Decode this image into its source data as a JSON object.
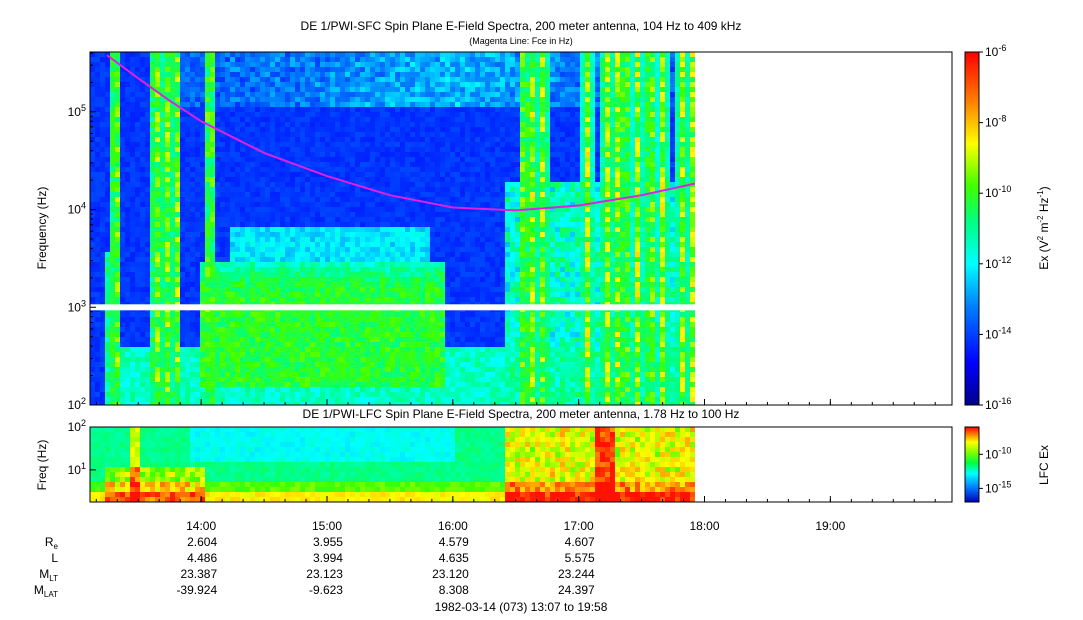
{
  "chart_data": [
    {
      "type": "heatmap",
      "title": "DE 1/PWI-SFC  Spin Plane E-Field Spectra, 200 meter antenna, 104 Hz to 409 kHz",
      "subtitle": "(Magenta Line: Fce in Hz)",
      "ylabel": "Frequency (Hz)",
      "yscale": "log",
      "ylim": [
        100,
        409000
      ],
      "yticks": [
        {
          "value": 100,
          "base": "10",
          "exp": "2"
        },
        {
          "value": 1000,
          "base": "10",
          "exp": "3"
        },
        {
          "value": 10000,
          "base": "10",
          "exp": "4"
        },
        {
          "value": 100000,
          "base": "10",
          "exp": "5"
        }
      ],
      "colorbar": {
        "label": "Ex (V",
        "label_sup1": "2",
        "label_mid": " m",
        "label_sup2": "-2",
        "label_mid2": " Hz",
        "label_sup3": "-1",
        "label_end": ")",
        "scale": "log",
        "range": [
          1e-16,
          1e-06
        ],
        "ticks": [
          {
            "value": 1e-06,
            "base": "10",
            "exp": "-6"
          },
          {
            "value": 1e-08,
            "base": "10",
            "exp": "-8"
          },
          {
            "value": 1e-10,
            "base": "10",
            "exp": "-10"
          },
          {
            "value": 1e-12,
            "base": "10",
            "exp": "-12"
          },
          {
            "value": 1e-14,
            "base": "10",
            "exp": "-14"
          },
          {
            "value": 1e-16,
            "base": "10",
            "exp": "-16"
          }
        ]
      },
      "data_gap_hz": 1000,
      "fce_line": {
        "color": "#e020e0",
        "x_hours": [
          13.25,
          13.5,
          13.75,
          14.0,
          14.5,
          15.0,
          15.5,
          16.0,
          16.5,
          17.0,
          17.5,
          17.93
        ],
        "y_hz": [
          380000,
          220000,
          130000,
          80000,
          38000,
          22000,
          14000,
          10500,
          9800,
          11000,
          14000,
          18500
        ]
      }
    },
    {
      "type": "heatmap",
      "title": "DE 1/PWI-LFC  Spin Plane E-Field Spectra, 200 meter antenna, 1.78 Hz to 100 Hz",
      "ylabel": "Freq (Hz)",
      "yscale": "log",
      "ylim": [
        1.78,
        100
      ],
      "yticks": [
        {
          "value": 100,
          "base": "10",
          "exp": "2"
        },
        {
          "value": 10,
          "base": "10",
          "exp": "1"
        }
      ],
      "colorbar": {
        "label": "LFC Ex",
        "scale": "log",
        "range": [
          1e-16,
          1e-06
        ],
        "ticks": [
          {
            "value": 1e-10,
            "base": "10",
            "exp": "-10"
          },
          {
            "value": 1e-15,
            "base": "10",
            "exp": "-15"
          }
        ]
      }
    }
  ],
  "time_axis": {
    "start_hour": 13.1167,
    "end_hour": 19.9667,
    "data_end_hour": 17.93,
    "tick_labels": [
      {
        "hour": 14,
        "label": "14:00"
      },
      {
        "hour": 15,
        "label": "15:00"
      },
      {
        "hour": 16,
        "label": "16:00"
      },
      {
        "hour": 17,
        "label": "17:00"
      },
      {
        "hour": 18,
        "label": "18:00"
      },
      {
        "hour": 19,
        "label": "19:00"
      }
    ]
  },
  "ephemeris": {
    "rows": [
      {
        "label": "R",
        "sub": "e",
        "values": [
          "2.604",
          "3.955",
          "4.579",
          "4.607"
        ]
      },
      {
        "label": "L",
        "sub": "",
        "values": [
          "4.486",
          "3.994",
          "4.635",
          "5.575"
        ]
      },
      {
        "label": "M",
        "sub": "LT",
        "values": [
          "23.387",
          "23.123",
          "23.120",
          "23.244"
        ]
      },
      {
        "label": "M",
        "sub": "LAT",
        "values": [
          "-39.924",
          "-9.623",
          "8.308",
          "24.397"
        ]
      }
    ],
    "hours": [
      14,
      15,
      16,
      17
    ]
  },
  "footer": "1982-03-14 (073) 13:07 to 19:58"
}
